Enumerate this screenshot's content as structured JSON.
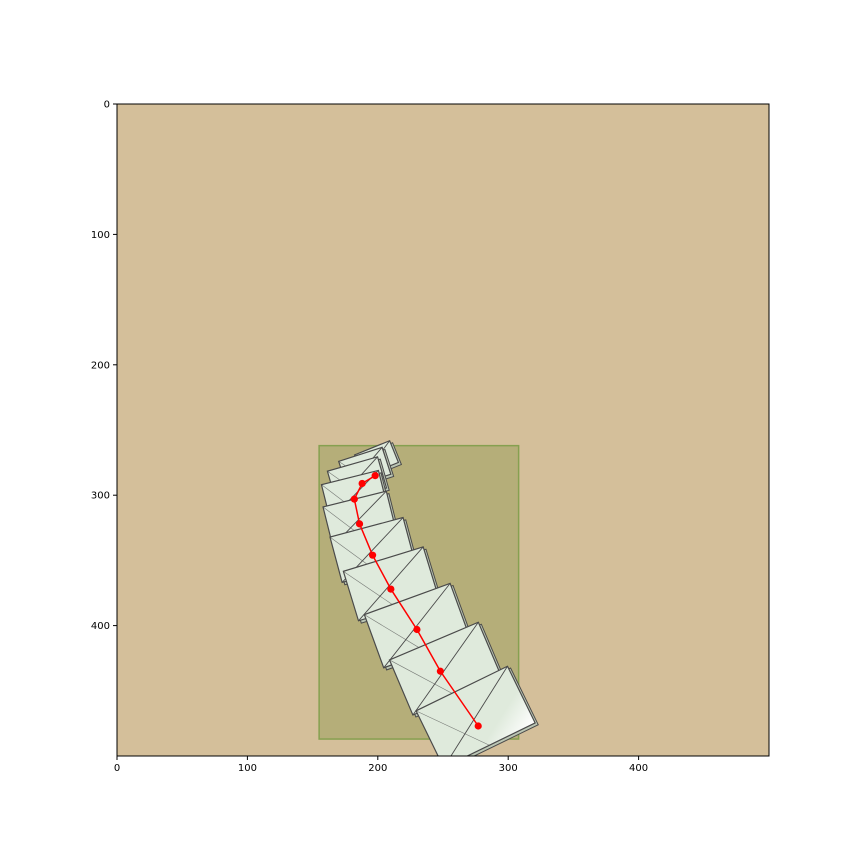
{
  "colors": {
    "background": "#d4bf9a",
    "region_fill": "#7c8f3c",
    "region_edge": "#86a050",
    "trajectory": "#ff0000",
    "tile_face": "#dfeadc",
    "tile_edge": "#4a4a4a",
    "tile_shadow": "#bcc7b5"
  },
  "chart_data": {
    "type": "scatter",
    "title": "",
    "xlabel": "",
    "ylabel": "",
    "xlim": [
      0,
      500
    ],
    "ylim": [
      500,
      0
    ],
    "y_inverted": true,
    "grid": false,
    "legend": "none",
    "x_ticks": [
      0,
      100,
      200,
      300,
      400
    ],
    "y_ticks": [
      0,
      100,
      200,
      300,
      400
    ],
    "x_tick_labels": [
      "0",
      "100",
      "200",
      "300",
      "400"
    ],
    "y_tick_labels": [
      "0",
      "100",
      "200",
      "300",
      "400"
    ],
    "highlight_region": {
      "x0": 155,
      "y0": 262,
      "x1": 308,
      "y1": 487
    },
    "series": [
      {
        "marker": "circle",
        "line": true,
        "x": [
          198,
          188,
          182,
          186,
          196,
          210,
          230,
          248,
          277
        ],
        "y": [
          285,
          291,
          303,
          322,
          346,
          372,
          403,
          435,
          477
        ]
      }
    ],
    "tiles": [
      {
        "x": 199,
        "y": 272,
        "w": 29,
        "angle": -22
      },
      {
        "x": 190,
        "y": 279,
        "w": 35,
        "angle": -18
      },
      {
        "x": 184,
        "y": 288,
        "w": 40,
        "angle": -16
      },
      {
        "x": 182,
        "y": 300,
        "w": 45,
        "angle": -14
      },
      {
        "x": 186,
        "y": 318,
        "w": 50,
        "angle": -14
      },
      {
        "x": 196,
        "y": 342,
        "w": 58,
        "angle": -15
      },
      {
        "x": 210,
        "y": 368,
        "w": 64,
        "angle": -17
      },
      {
        "x": 230,
        "y": 400,
        "w": 70,
        "angle": -20
      },
      {
        "x": 252,
        "y": 433,
        "w": 74,
        "angle": -23
      },
      {
        "x": 275,
        "y": 470,
        "w": 78,
        "angle": -26
      }
    ]
  }
}
